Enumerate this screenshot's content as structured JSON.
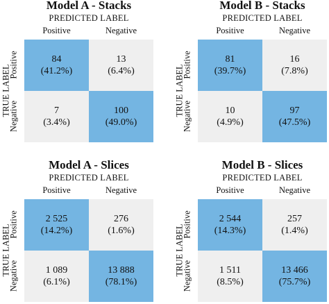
{
  "chart_data": [
    {
      "type": "heatmap",
      "title": "Model A - Stacks",
      "xlabel": "PREDICTED LABEL",
      "ylabel": "TRUE LABEL",
      "x_categories": [
        "Positive",
        "Negative"
      ],
      "y_categories": [
        "Positive",
        "Negative"
      ],
      "cells": [
        {
          "count": "84",
          "pct": "(41.2%)",
          "value": 84
        },
        {
          "count": "13",
          "pct": "(6.4%)",
          "value": 13
        },
        {
          "count": "7",
          "pct": "(3.4%)",
          "value": 7
        },
        {
          "count": "100",
          "pct": "(49.0%)",
          "value": 100
        }
      ]
    },
    {
      "type": "heatmap",
      "title": "Model B - Stacks",
      "xlabel": "PREDICTED LABEL",
      "ylabel": "TRUE LABEL",
      "x_categories": [
        "Positive",
        "Negative"
      ],
      "y_categories": [
        "Positive",
        "Negative"
      ],
      "cells": [
        {
          "count": "81",
          "pct": "(39.7%)",
          "value": 81
        },
        {
          "count": "16",
          "pct": "(7.8%)",
          "value": 16
        },
        {
          "count": "10",
          "pct": "(4.9%)",
          "value": 10
        },
        {
          "count": "97",
          "pct": "(47.5%)",
          "value": 97
        }
      ]
    },
    {
      "type": "heatmap",
      "title": "Model A - Slices",
      "xlabel": "PREDICTED LABEL",
      "ylabel": "TRUE LABEL",
      "x_categories": [
        "Positive",
        "Negative"
      ],
      "y_categories": [
        "Positive",
        "Negative"
      ],
      "cells": [
        {
          "count": "2 525",
          "pct": "(14.2%)",
          "value": 2525
        },
        {
          "count": "276",
          "pct": "(1.6%)",
          "value": 276
        },
        {
          "count": "1 089",
          "pct": "(6.1%)",
          "value": 1089
        },
        {
          "count": "13 888",
          "pct": "(78.1%)",
          "value": 13888
        }
      ]
    },
    {
      "type": "heatmap",
      "title": "Model B - Slices",
      "xlabel": "PREDICTED LABEL",
      "ylabel": "TRUE LABEL",
      "x_categories": [
        "Positive",
        "Negative"
      ],
      "y_categories": [
        "Positive",
        "Negative"
      ],
      "cells": [
        {
          "count": "2 544",
          "pct": "(14.3%)",
          "value": 2544
        },
        {
          "count": "257",
          "pct": "(1.4%)",
          "value": 257
        },
        {
          "count": "1 511",
          "pct": "(8.5%)",
          "value": 1511
        },
        {
          "count": "13 466",
          "pct": "(75.7%)",
          "value": 13466
        }
      ]
    }
  ],
  "colors": {
    "diagonal": "#74b5e2",
    "off_diagonal": "#efefef"
  }
}
